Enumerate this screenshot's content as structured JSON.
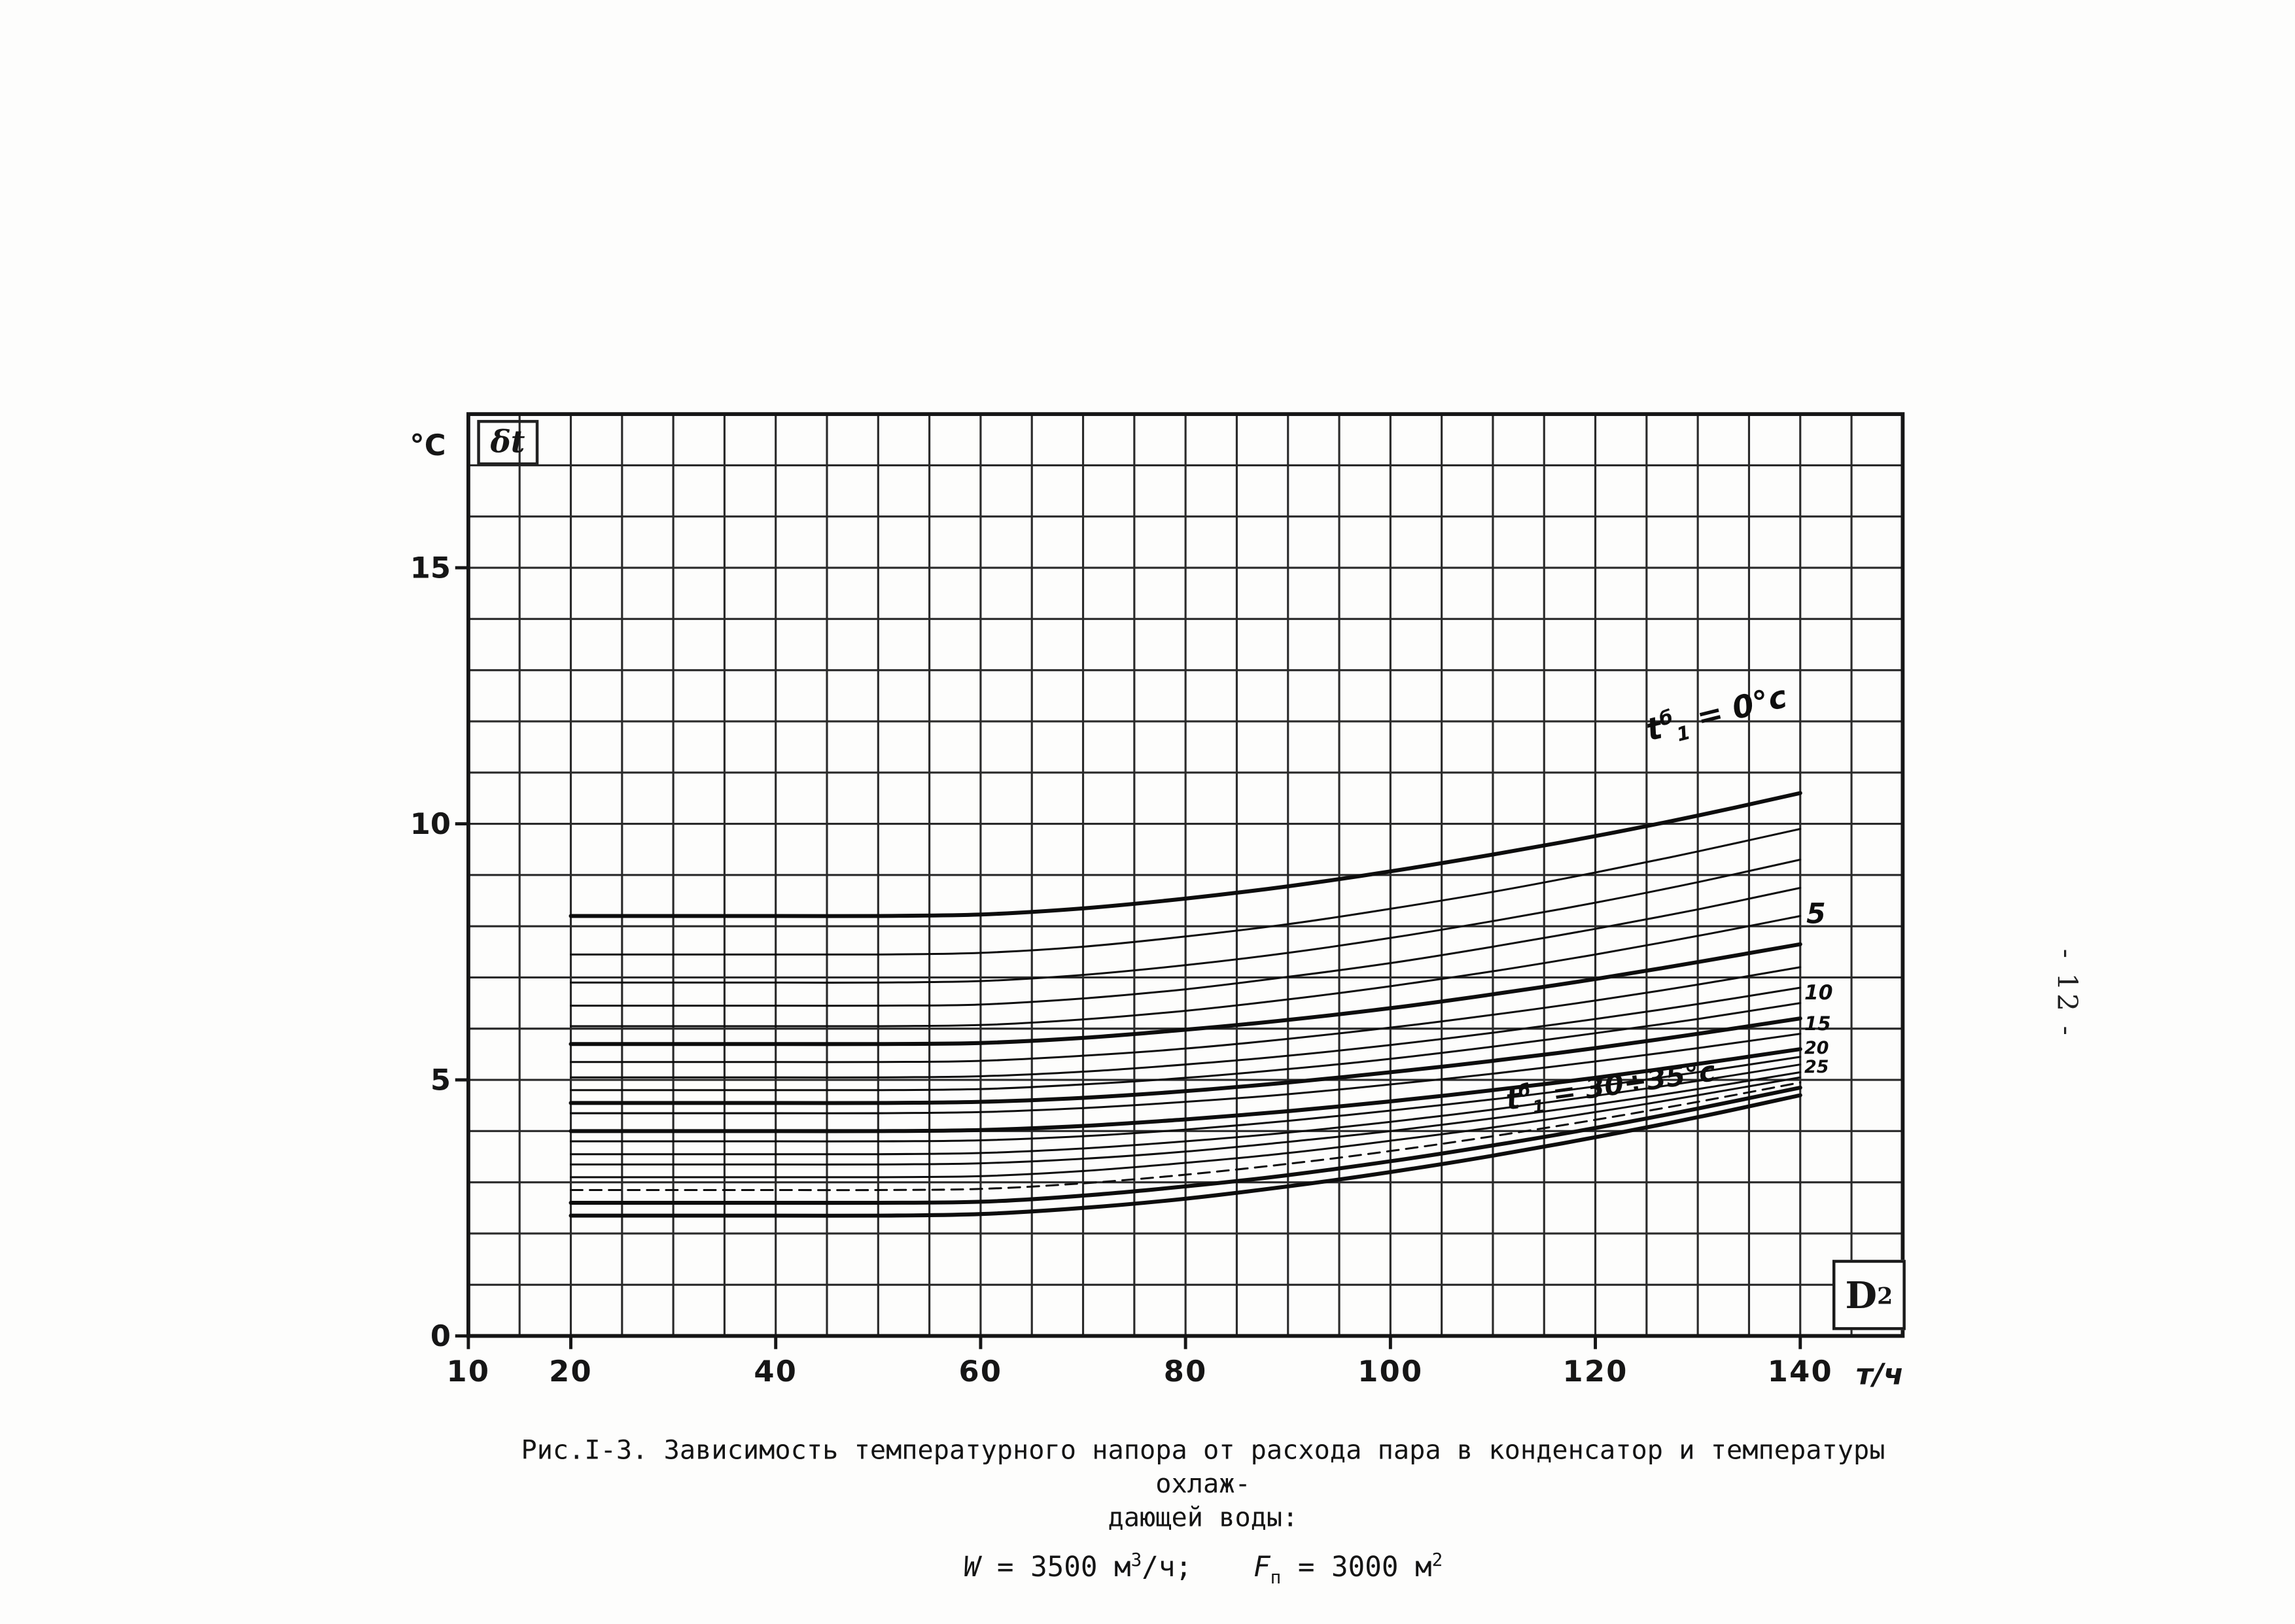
{
  "page": {
    "number_vertical": "- 12 -"
  },
  "axes": {
    "y_unit": "°C",
    "y_symbol": "δt",
    "x_box_main": "D",
    "x_box_sub": "2",
    "x_unit": "т/ч"
  },
  "caption": {
    "line1": "Рис.I-3. Зависимость температурного напора от расхода пара в конденсатор и температуры охлаж-",
    "line2": "дающей воды:",
    "w_name": "W",
    "w_value": " = 3500 м",
    "w_sup": "3",
    "w_after": "/ч;",
    "f_name": "F",
    "f_sub": "п",
    "f_value": " = 3000 м",
    "f_sup": "2"
  },
  "chart_data": {
    "type": "line",
    "title": "Зависимость температурного напора от расхода пара в конденсатор и температуры охлаждающей воды",
    "xlabel": "D2, т/ч",
    "ylabel": "δt, °C",
    "xlim": [
      10,
      150
    ],
    "ylim": [
      0,
      18
    ],
    "x_ticks": [
      10,
      20,
      40,
      60,
      80,
      100,
      120,
      140
    ],
    "y_ticks": [
      0,
      5,
      10,
      15
    ],
    "grid_step_x": 5,
    "grid_step_y": 1,
    "grid": true,
    "x": [
      20,
      30,
      40,
      50,
      60,
      70,
      80,
      90,
      100,
      110,
      120,
      130,
      140
    ],
    "series": [
      {
        "name": "t1б = 0°C",
        "t1b": 0,
        "bold": true,
        "values": [
          8.2,
          8.2,
          8.2,
          8.2,
          8.23,
          8.35,
          8.54,
          8.78,
          9.07,
          9.4,
          9.76,
          10.16,
          10.6
        ]
      },
      {
        "name": "",
        "t1b": null,
        "bold": false,
        "values": [
          7.45,
          7.45,
          7.45,
          7.45,
          7.48,
          7.6,
          7.8,
          8.04,
          8.34,
          8.67,
          9.05,
          9.46,
          9.9
        ]
      },
      {
        "name": "",
        "t1b": null,
        "bold": false,
        "values": [
          6.9,
          6.9,
          6.9,
          6.9,
          6.93,
          7.05,
          7.24,
          7.48,
          7.77,
          8.1,
          8.46,
          8.86,
          9.3
        ]
      },
      {
        "name": "",
        "t1b": null,
        "bold": false,
        "values": [
          6.45,
          6.45,
          6.45,
          6.45,
          6.47,
          6.59,
          6.77,
          7.01,
          7.28,
          7.6,
          7.95,
          8.33,
          8.75
        ]
      },
      {
        "name": "",
        "t1b": null,
        "bold": false,
        "values": [
          6.05,
          6.05,
          6.05,
          6.05,
          6.07,
          6.18,
          6.35,
          6.57,
          6.83,
          7.12,
          7.45,
          7.81,
          8.2
        ]
      },
      {
        "name": "t1б = 5°C",
        "t1b": 5,
        "bold": true,
        "values": [
          5.7,
          5.7,
          5.7,
          5.7,
          5.72,
          5.82,
          5.98,
          6.17,
          6.4,
          6.67,
          6.97,
          7.3,
          7.65
        ]
      },
      {
        "name": "",
        "t1b": null,
        "bold": false,
        "values": [
          5.35,
          5.35,
          5.35,
          5.35,
          5.37,
          5.47,
          5.61,
          5.8,
          6.02,
          6.27,
          6.55,
          6.86,
          7.2
        ]
      },
      {
        "name": "",
        "t1b": null,
        "bold": false,
        "values": [
          5.05,
          5.05,
          5.05,
          5.05,
          5.07,
          5.16,
          5.3,
          5.47,
          5.68,
          5.92,
          6.19,
          6.48,
          6.8
        ]
      },
      {
        "name": "",
        "t1b": null,
        "bold": false,
        "values": [
          4.8,
          4.8,
          4.8,
          4.8,
          4.82,
          4.91,
          5.04,
          5.21,
          5.41,
          5.65,
          5.91,
          6.19,
          6.5
        ]
      },
      {
        "name": "t1б = 10°C",
        "t1b": 10,
        "bold": true,
        "values": [
          4.55,
          4.55,
          4.55,
          4.55,
          4.57,
          4.65,
          4.78,
          4.95,
          5.15,
          5.37,
          5.62,
          5.9,
          6.2
        ]
      },
      {
        "name": "",
        "t1b": null,
        "bold": false,
        "values": [
          4.35,
          4.35,
          4.35,
          4.35,
          4.37,
          4.45,
          4.57,
          4.72,
          4.91,
          5.12,
          5.36,
          5.62,
          5.9
        ]
      },
      {
        "name": "t1б = 15°C",
        "t1b": 15,
        "bold": true,
        "values": [
          4.0,
          4.0,
          4.0,
          4.0,
          4.02,
          4.1,
          4.23,
          4.39,
          4.58,
          4.8,
          5.04,
          5.31,
          5.6
        ]
      },
      {
        "name": "",
        "t1b": null,
        "bold": false,
        "values": [
          3.8,
          3.8,
          3.8,
          3.8,
          3.82,
          3.9,
          4.03,
          4.2,
          4.4,
          4.62,
          4.87,
          5.15,
          5.45
        ]
      },
      {
        "name": "t1б = 20°C",
        "t1b": 20,
        "bold": false,
        "values": [
          3.55,
          3.55,
          3.55,
          3.55,
          3.57,
          3.66,
          3.8,
          3.97,
          4.18,
          4.42,
          4.69,
          4.98,
          5.3
        ]
      },
      {
        "name": "",
        "t1b": null,
        "bold": false,
        "values": [
          3.35,
          3.35,
          3.35,
          3.35,
          3.37,
          3.46,
          3.6,
          3.79,
          4.0,
          4.25,
          4.52,
          4.82,
          5.15
        ]
      },
      {
        "name": "t1б = 25°C",
        "t1b": 25,
        "bold": false,
        "values": [
          3.1,
          3.1,
          3.1,
          3.1,
          3.12,
          3.22,
          3.38,
          3.57,
          3.81,
          4.07,
          4.37,
          4.7,
          5.05
        ]
      },
      {
        "name": "",
        "t1b": null,
        "bold": false,
        "dash": "8 5",
        "values": [
          2.85,
          2.85,
          2.85,
          2.85,
          2.87,
          2.98,
          3.15,
          3.36,
          3.61,
          3.9,
          4.22,
          4.57,
          4.95
        ]
      },
      {
        "name": "t1б = 30°C",
        "t1b": 30,
        "bold": true,
        "values": [
          2.6,
          2.6,
          2.6,
          2.6,
          2.62,
          2.74,
          2.92,
          3.14,
          3.41,
          3.72,
          4.06,
          4.44,
          4.85
        ]
      },
      {
        "name": "t1б = 35°C",
        "t1b": 35,
        "bold": true,
        "values": [
          2.35,
          2.35,
          2.35,
          2.35,
          2.38,
          2.5,
          2.68,
          2.92,
          3.2,
          3.52,
          3.88,
          4.27,
          4.7
        ]
      }
    ],
    "labels": [
      {
        "pre": "t",
        "sub": "1",
        "sup": "б",
        "text": " = 0°c",
        "x": 125.5,
        "y": 11.55,
        "rot": -14,
        "size": 21
      },
      {
        "pre": "",
        "sub": "",
        "sup": "",
        "text": "5",
        "x": 140.6,
        "y": 7.95,
        "rot": 0,
        "size": 19
      },
      {
        "pre": "",
        "sub": "",
        "sup": "",
        "text": "10",
        "x": 140.4,
        "y": 6.5,
        "rot": 0,
        "size": 14
      },
      {
        "pre": "",
        "sub": "",
        "sup": "",
        "text": "15",
        "x": 140.4,
        "y": 5.88,
        "rot": 0,
        "size": 13
      },
      {
        "pre": "",
        "sub": "",
        "sup": "",
        "text": "20",
        "x": 140.4,
        "y": 5.46,
        "rot": 0,
        "size": 12
      },
      {
        "pre": "",
        "sub": "",
        "sup": "",
        "text": "25",
        "x": 140.4,
        "y": 5.08,
        "rot": 0,
        "size": 12
      },
      {
        "pre": "t",
        "sub": "1",
        "sup": "б",
        "text": " = 30÷35°c",
        "x": 111.5,
        "y": 4.35,
        "rot": -8,
        "size": 19
      }
    ],
    "legend": "none"
  }
}
